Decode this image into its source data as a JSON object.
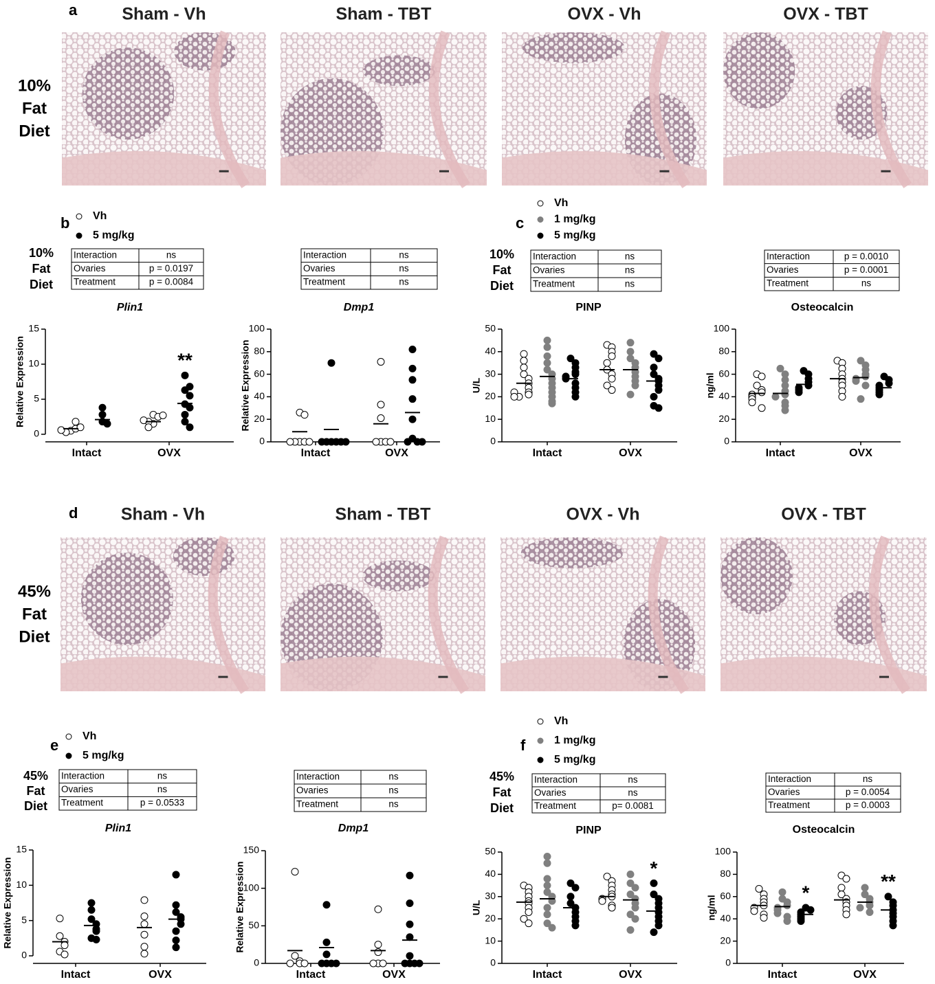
{
  "histology": [
    {
      "label": "a",
      "diet": [
        "10%",
        "Fat",
        "Diet"
      ],
      "images": [
        "Sham - Vh",
        "Sham - TBT",
        "OVX - Vh",
        "OVX - TBT"
      ]
    },
    {
      "label": "d",
      "diet": [
        "45%",
        "Fat",
        "Diet"
      ],
      "images": [
        "Sham - Vh",
        "Sham - TBT",
        "OVX - Vh",
        "OVX - TBT"
      ]
    }
  ],
  "figure_panels": [
    {
      "label": "b",
      "diet": [
        "10%",
        "Fat",
        "Diet"
      ]
    },
    {
      "label": "c",
      "diet": [
        "10%",
        "Fat",
        "Diet"
      ]
    },
    {
      "label": "e",
      "diet": [
        "45%",
        "Fat",
        "Diet"
      ]
    },
    {
      "label": "f",
      "diet": [
        "45%",
        "Fat",
        "Diet"
      ]
    }
  ],
  "chart_data": [
    {
      "type": "dot",
      "title": "Plin1",
      "y_label": "Relative Expression",
      "categories": [
        "Intact",
        "OVX"
      ],
      "ylim": [
        0,
        15
      ],
      "yticks": [
        0,
        5,
        10,
        15
      ],
      "stats": [
        [
          "Interaction",
          "ns"
        ],
        [
          "Ovaries",
          "p = 0.0197"
        ],
        [
          "Treatment",
          "p = 0.0084"
        ]
      ],
      "series": [
        {
          "name": "Vh",
          "color": "#ffffff",
          "values": [
            [
              0.5,
              0.8,
              0.3,
              1.0,
              1.8,
              0.6
            ],
            [
              2.8,
              2.5,
              1.5,
              1.8,
              1.0,
              2.0,
              2.7
            ]
          ],
          "means": [
            0.8,
            1.8
          ]
        },
        {
          "name": "5 mg/kg",
          "color": "#000000",
          "values": [
            [
              3.8,
              2.8,
              1.8,
              1.5
            ],
            [
              8.4,
              6.3,
              6.8,
              5.5,
              4.3,
              3.8,
              2.8,
              1.8,
              1.0
            ]
          ],
          "means": [
            2.1,
            4.4
          ]
        }
      ],
      "annotations": [
        {
          "text": "**",
          "category": 1,
          "series": 1
        }
      ]
    },
    {
      "type": "dot",
      "title": "Dmp1",
      "y_label": "Relative Expression",
      "categories": [
        "Intact",
        "OVX"
      ],
      "ylim": [
        0,
        100
      ],
      "yticks": [
        0,
        20,
        40,
        60,
        80,
        100
      ],
      "stats": [
        [
          "Interaction",
          "ns"
        ],
        [
          "Ovaries",
          "ns"
        ],
        [
          "Treatment",
          "ns"
        ]
      ],
      "series": [
        {
          "name": "Vh",
          "color": "#ffffff",
          "values": [
            [
              26,
              24,
              0,
              0,
              0,
              0,
              0
            ],
            [
              71,
              33,
              21,
              0,
              0,
              0,
              0
            ]
          ],
          "means": [
            9,
            16
          ]
        },
        {
          "name": "5 mg/kg",
          "color": "#000000",
          "values": [
            [
              70,
              0,
              0,
              0,
              0,
              0,
              0
            ],
            [
              82,
              65,
              55,
              38,
              20,
              3,
              0,
              0,
              0
            ]
          ],
          "means": [
            11,
            26
          ]
        }
      ],
      "annotations": []
    },
    {
      "type": "dot",
      "title": "PINP",
      "y_label": "U/L",
      "categories": [
        "Intact",
        "OVX"
      ],
      "ylim": [
        0,
        50
      ],
      "yticks": [
        0,
        10,
        20,
        30,
        40,
        50
      ],
      "stats": [
        [
          "Interaction",
          "ns"
        ],
        [
          "Ovaries",
          "ns"
        ],
        [
          "Treatment",
          "ns"
        ]
      ],
      "series": [
        {
          "name": "Vh",
          "color": "#ffffff",
          "values": [
            [
              39,
              36,
              33,
              30,
              28,
              26,
              24,
              22,
              21,
              20,
              22,
              20
            ],
            [
              43,
              42,
              40,
              38,
              35,
              32,
              30,
              28,
              25,
              23
            ]
          ],
          "means": [
            26,
            32
          ]
        },
        {
          "name": "1 mg/kg",
          "color": "#808080",
          "values": [
            [
              45,
              42,
              38,
              35,
              32,
              30,
              28,
              26,
              24,
              22,
              20,
              18,
              17
            ],
            [
              44,
              40,
              37,
              35,
              33,
              31,
              29,
              27,
              25,
              21
            ]
          ],
          "means": [
            29,
            32
          ]
        },
        {
          "name": "5 mg/kg",
          "color": "#000000",
          "values": [
            [
              37,
              35,
              33,
              31,
              30,
              29,
              28,
              26,
              24,
              22,
              20
            ],
            [
              39,
              37,
              33,
              30,
              28,
              27,
              25,
              23,
              20,
              16,
              15
            ]
          ],
          "means": [
            28,
            27
          ]
        }
      ],
      "annotations": []
    },
    {
      "type": "dot",
      "title": "Osteocalcin",
      "y_label": "ng/ml",
      "categories": [
        "Intact",
        "OVX"
      ],
      "ylim": [
        0,
        100
      ],
      "yticks": [
        0,
        20,
        40,
        60,
        80,
        100
      ],
      "stats": [
        [
          "Interaction",
          "p = 0.0010"
        ],
        [
          "Ovaries",
          "p = 0.0001"
        ],
        [
          "Treatment",
          "ns"
        ]
      ],
      "series": [
        {
          "name": "Vh",
          "color": "#ffffff",
          "values": [
            [
              60,
              58,
              50,
              46,
              44,
              42,
              40,
              38,
              35,
              30
            ],
            [
              72,
              70,
              65,
              60,
              56,
              53,
              50,
              45,
              40
            ]
          ],
          "means": [
            43,
            56
          ]
        },
        {
          "name": "1 mg/kg",
          "color": "#808080",
          "values": [
            [
              65,
              60,
              55,
              50,
              45,
              42,
              40,
              35,
              32,
              28
            ],
            [
              72,
              68,
              64,
              60,
              58,
              56,
              54,
              50,
              38
            ]
          ],
          "means": [
            43,
            57
          ]
        },
        {
          "name": "5 mg/kg",
          "color": "#000000",
          "values": [
            [
              63,
              60,
              56,
              53,
              50,
              48,
              46,
              44
            ],
            [
              58,
              55,
              52,
              50,
              48,
              46,
              44,
              42
            ]
          ],
          "means": [
            51,
            48
          ]
        }
      ],
      "annotations": []
    },
    {
      "type": "dot",
      "title": "Plin1",
      "y_label": "Relative Expression",
      "categories": [
        "Intact",
        "OVX"
      ],
      "ylim": [
        0,
        15
      ],
      "yticks": [
        0,
        5,
        10,
        15
      ],
      "stats": [
        [
          "Interaction",
          "ns"
        ],
        [
          "Ovaries",
          "ns"
        ],
        [
          "Treatment",
          "p = 0.0533"
        ]
      ],
      "series": [
        {
          "name": "Vh",
          "color": "#ffffff",
          "values": [
            [
              5.3,
              2.8,
              2.0,
              1.5,
              0.6,
              0.2
            ],
            [
              7.9,
              5.6,
              4.5,
              3.0,
              1.3,
              0.3
            ]
          ],
          "means": [
            2,
            4.0
          ]
        },
        {
          "name": "5 mg/kg",
          "color": "#000000",
          "values": [
            [
              7.5,
              6.5,
              5.2,
              4.5,
              3.8,
              3.5,
              2.5,
              2.3
            ],
            [
              11.5,
              7.2,
              6.2,
              5.5,
              5.2,
              4.5,
              3.5,
              2.2,
              1.2
            ]
          ],
          "means": [
            4.3,
            5.2
          ]
        }
      ],
      "annotations": []
    },
    {
      "type": "dot",
      "title": "Dmp1",
      "y_label": "Relative Expression",
      "categories": [
        "Intact",
        "OVX"
      ],
      "ylim": [
        0,
        150
      ],
      "yticks": [
        0,
        50,
        100,
        150
      ],
      "stats": [
        [
          "Interaction",
          "ns"
        ],
        [
          "Ovaries",
          "ns"
        ],
        [
          "Treatment",
          "ns"
        ]
      ],
      "series": [
        {
          "name": "Vh",
          "color": "#ffffff",
          "values": [
            [
              122,
              10,
              3,
              0,
              0,
              0
            ],
            [
              72,
              25,
              15,
              0,
              0,
              0
            ]
          ],
          "means": [
            17,
            17
          ]
        },
        {
          "name": "5 mg/kg",
          "color": "#000000",
          "values": [
            [
              78,
              28,
              12,
              0,
              0,
              0,
              0
            ],
            [
              117,
              80,
              52,
              35,
              10,
              0,
              0,
              0,
              0
            ]
          ],
          "means": [
            21,
            31
          ]
        }
      ],
      "annotations": []
    },
    {
      "type": "dot",
      "title": "PINP",
      "y_label": "U/L",
      "categories": [
        "Intact",
        "OVX"
      ],
      "ylim": [
        0,
        50
      ],
      "yticks": [
        0,
        10,
        20,
        30,
        40,
        50
      ],
      "stats": [
        [
          "Interaction",
          "ns"
        ],
        [
          "Ovaries",
          "ns"
        ],
        [
          "Treatment",
          "p= 0.0081"
        ]
      ],
      "series": [
        {
          "name": "Vh",
          "color": "#ffffff",
          "values": [
            [
              35,
              34,
              32,
              30,
              28,
              27,
              25,
              23,
              20,
              18
            ],
            [
              39,
              37,
              35,
              33,
              31,
              30,
              29,
              28,
              26,
              25
            ]
          ],
          "means": [
            27.5,
            30
          ]
        },
        {
          "name": "1 mg/kg",
          "color": "#808080",
          "values": [
            [
              48,
              45,
              38,
              35,
              32,
              30,
              28,
              25,
              22,
              18,
              16
            ],
            [
              40,
              36,
              34,
              31,
              29,
              27,
              25,
              22,
              20,
              15
            ]
          ],
          "means": [
            29,
            28.5
          ]
        },
        {
          "name": "5 mg/kg",
          "color": "#000000",
          "values": [
            [
              36,
              34,
              30,
              27,
              25,
              23,
              21,
              19,
              17
            ],
            [
              36,
              31,
              29,
              27,
              25,
              23,
              21,
              19,
              17,
              14
            ]
          ],
          "means": [
            25,
            23.5
          ]
        }
      ],
      "annotations": [
        {
          "text": "*",
          "category": 1,
          "series": 2
        }
      ]
    },
    {
      "type": "dot",
      "title": "Osteocalcin",
      "y_label": "ng/ml",
      "categories": [
        "Intact",
        "OVX"
      ],
      "ylim": [
        0,
        100
      ],
      "yticks": [
        0,
        20,
        40,
        60,
        80,
        100
      ],
      "stats": [
        [
          "Interaction",
          "ns"
        ],
        [
          "Ovaries",
          "p = 0.0054"
        ],
        [
          "Treatment",
          "p = 0.0003"
        ]
      ],
      "series": [
        {
          "name": "Vh",
          "color": "#ffffff",
          "values": [
            [
              67,
              62,
              58,
              55,
              52,
              50,
              47,
              44,
              41
            ],
            [
              79,
              76,
              68,
              62,
              58,
              55,
              52,
              48,
              44
            ]
          ],
          "means": [
            52,
            57
          ]
        },
        {
          "name": "1 mg/kg",
          "color": "#808080",
          "values": [
            [
              64,
              58,
              55,
              52,
              50,
              48,
              45,
              42,
              38
            ],
            [
              68,
              62,
              58,
              55,
              52,
              50,
              46
            ]
          ],
          "means": [
            51,
            55
          ]
        },
        {
          "name": "5 mg/kg",
          "color": "#000000",
          "values": [
            [
              50,
              48,
              46,
              44,
              42,
              40,
              38
            ],
            [
              60,
              55,
              52,
              48,
              45,
              42,
              38,
              34
            ]
          ],
          "means": [
            44,
            48
          ]
        }
      ],
      "annotations": [
        {
          "text": "*",
          "category": 0,
          "series": 2
        },
        {
          "text": "**",
          "category": 1,
          "series": 2
        }
      ]
    }
  ]
}
